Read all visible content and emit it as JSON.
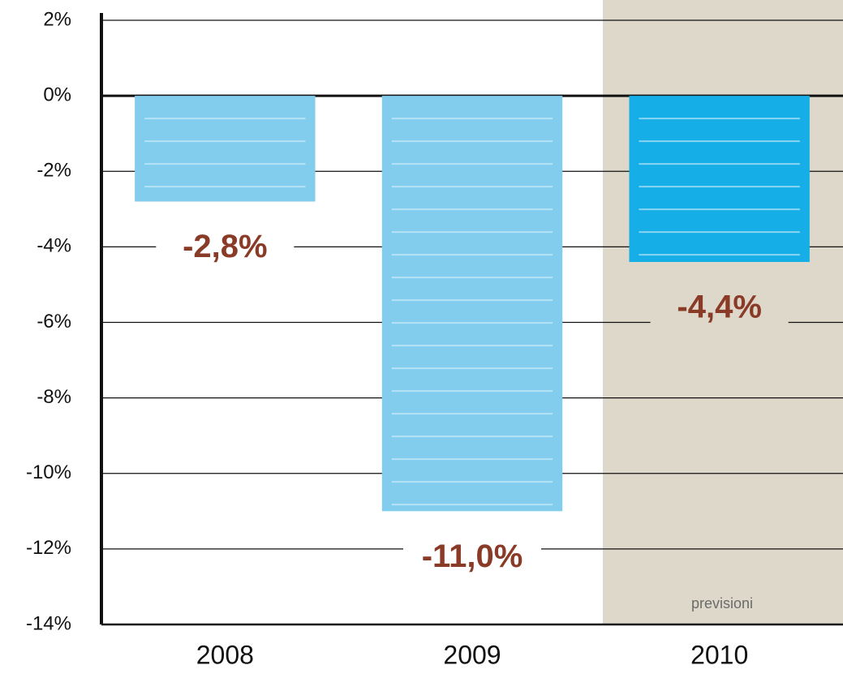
{
  "chart_data": {
    "type": "bar",
    "categories": [
      "2008",
      "2009",
      "2010"
    ],
    "values": [
      -2.8,
      -11.0,
      -4.4
    ],
    "value_labels": [
      "-2,8%",
      "-11,0%",
      "-4,4%"
    ],
    "colors": [
      "#82cdee",
      "#82cdee",
      "#16aee6"
    ],
    "annotation": "previsioni",
    "ylim": [
      -14,
      2
    ],
    "yticks": [
      {
        "value": 2,
        "label": "2%"
      },
      {
        "value": 0,
        "label": "0%"
      },
      {
        "value": -2,
        "label": "-2%"
      },
      {
        "value": -4,
        "label": "-4%"
      },
      {
        "value": -6,
        "label": "-6%"
      },
      {
        "value": -8,
        "label": "-8%"
      },
      {
        "value": -10,
        "label": "-10%"
      },
      {
        "value": -12,
        "label": "-12%"
      },
      {
        "value": -14,
        "label": "-14%"
      }
    ],
    "grid": true
  }
}
